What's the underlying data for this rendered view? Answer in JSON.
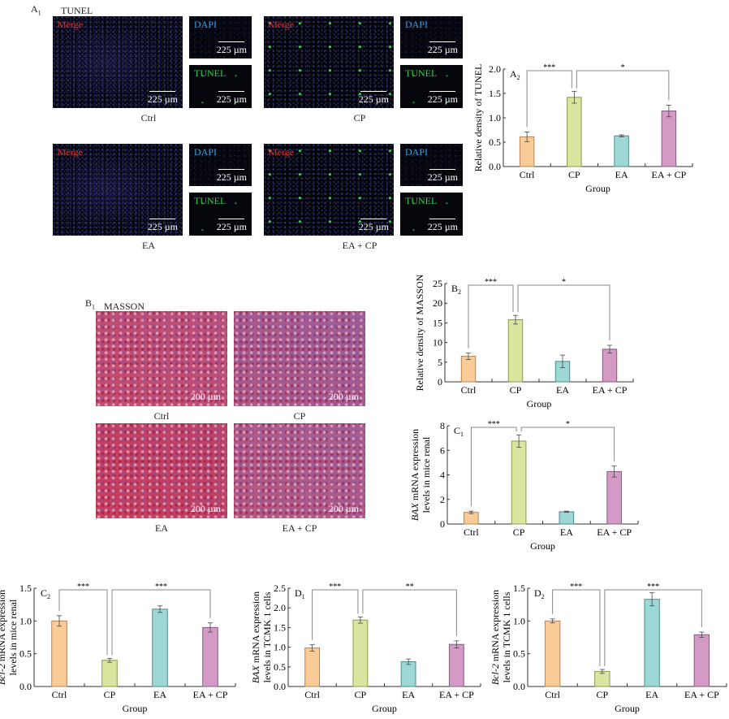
{
  "section_a": {
    "panel": "A",
    "sub": "1",
    "title": "TUNEL",
    "channels": {
      "merge": "Merge",
      "dapi": "DAPI",
      "tunel": "TUNEL"
    },
    "scale_bar": "225 µm",
    "groups": [
      "Ctrl",
      "CP",
      "EA",
      "EA + CP"
    ]
  },
  "section_b": {
    "panel": "B",
    "sub": "1",
    "title": "MASSON",
    "scale_bar": "200 µm",
    "groups": [
      "Ctrl",
      "CP",
      "EA",
      "EA + CP"
    ]
  },
  "colors": {
    "Ctrl": "#f9cc97",
    "CP": "#d9e6a0",
    "EA": "#9dd8d6",
    "EA + CP": "#d39ac6",
    "merge_label": "#e03030",
    "dapi_label": "#3aa0e0",
    "tunel_label": "#30d050"
  },
  "chart_data": [
    {
      "id": "A2",
      "type": "bar",
      "panel": "A",
      "sub": "2",
      "categories": [
        "Ctrl",
        "CP",
        "EA",
        "EA + CP"
      ],
      "values": [
        0.61,
        1.42,
        0.63,
        1.14
      ],
      "errors": [
        0.1,
        0.12,
        0.02,
        0.12
      ],
      "xlabel": "Group",
      "ylabel_gene": "",
      "ylabel_rest": "Relative density of TUNEL",
      "ylabel_line2": "",
      "ylim": [
        0,
        2
      ],
      "yticks": [
        0,
        0.5,
        1,
        1.5,
        2
      ],
      "ytick_labels": [
        "0.0",
        "0.5",
        "1.0",
        "1.5",
        "2.0"
      ],
      "significance": [
        {
          "from": "CP",
          "to": "Ctrl",
          "label": "***"
        },
        {
          "from": "CP",
          "to": "EA + CP",
          "label": "*"
        }
      ]
    },
    {
      "id": "B2",
      "type": "bar",
      "panel": "B",
      "sub": "2",
      "categories": [
        "Ctrl",
        "CP",
        "EA",
        "EA + CP"
      ],
      "values": [
        6.5,
        15.8,
        5.2,
        8.3
      ],
      "errors": [
        0.8,
        1.1,
        1.6,
        1.0
      ],
      "xlabel": "Group",
      "ylabel_gene": "",
      "ylabel_rest": "Relative density of MASSON",
      "ylabel_line2": "",
      "ylim": [
        0,
        25
      ],
      "yticks": [
        0,
        5,
        10,
        15,
        20,
        25
      ],
      "ytick_labels": [
        "0",
        "5",
        "10",
        "15",
        "20",
        "25"
      ],
      "significance": [
        {
          "from": "CP",
          "to": "Ctrl",
          "label": "***"
        },
        {
          "from": "CP",
          "to": "EA + CP",
          "label": "*"
        }
      ]
    },
    {
      "id": "C1",
      "type": "bar",
      "panel": "C",
      "sub": "1",
      "categories": [
        "Ctrl",
        "CP",
        "EA",
        "EA + CP"
      ],
      "values": [
        0.95,
        6.75,
        1.0,
        4.27
      ],
      "errors": [
        0.1,
        0.5,
        0.05,
        0.45
      ],
      "xlabel": "Group",
      "ylabel_gene": "BAX",
      "ylabel_rest": " mRNA expression",
      "ylabel_line2": "levels in mice renal",
      "ylim": [
        0,
        8
      ],
      "yticks": [
        0,
        2,
        4,
        6,
        8
      ],
      "ytick_labels": [
        "0",
        "2",
        "4",
        "6",
        "8"
      ],
      "significance": [
        {
          "from": "CP",
          "to": "Ctrl",
          "label": "***"
        },
        {
          "from": "CP",
          "to": "EA + CP",
          "label": "*"
        }
      ]
    },
    {
      "id": "C2",
      "type": "bar",
      "panel": "C",
      "sub": "2",
      "categories": [
        "Ctrl",
        "CP",
        "EA",
        "EA + CP"
      ],
      "values": [
        1.0,
        0.4,
        1.18,
        0.9
      ],
      "errors": [
        0.08,
        0.03,
        0.05,
        0.07
      ],
      "xlabel": "Group",
      "ylabel_gene": "Bcl-2",
      "ylabel_rest": " mRNA expression",
      "ylabel_line2": "levels in mice renal",
      "ylim": [
        0,
        1.5
      ],
      "yticks": [
        0,
        0.5,
        1,
        1.5
      ],
      "ytick_labels": [
        "0.0",
        "0.5",
        "1.0",
        "1.5"
      ],
      "significance": [
        {
          "from": "CP",
          "to": "Ctrl",
          "label": "***"
        },
        {
          "from": "CP",
          "to": "EA + CP",
          "label": "***"
        }
      ]
    },
    {
      "id": "D1",
      "type": "bar",
      "panel": "D",
      "sub": "1",
      "categories": [
        "Ctrl",
        "CP",
        "EA",
        "EA + CP"
      ],
      "values": [
        0.98,
        1.69,
        0.63,
        1.07
      ],
      "errors": [
        0.08,
        0.08,
        0.07,
        0.09
      ],
      "xlabel": "Group",
      "ylabel_gene": "BAX",
      "ylabel_rest": " mRNA expression",
      "ylabel_line2": "levels in TCMK 1 cells",
      "ylim": [
        0,
        2.5
      ],
      "yticks": [
        0,
        0.5,
        1,
        1.5,
        2,
        2.5
      ],
      "ytick_labels": [
        "0.0",
        "0.5",
        "1.0",
        "1.5",
        "2.0",
        "2.5"
      ],
      "significance": [
        {
          "from": "CP",
          "to": "Ctrl",
          "label": "***"
        },
        {
          "from": "CP",
          "to": "EA + CP",
          "label": "**"
        }
      ]
    },
    {
      "id": "D2",
      "type": "bar",
      "panel": "D",
      "sub": "2",
      "categories": [
        "Ctrl",
        "CP",
        "EA",
        "EA + CP"
      ],
      "values": [
        1.0,
        0.23,
        1.33,
        0.79
      ],
      "errors": [
        0.03,
        0.03,
        0.1,
        0.04
      ],
      "xlabel": "Group",
      "ylabel_gene": "Bcl-2",
      "ylabel_rest": " mRNA expression",
      "ylabel_line2": "levels in TCMK 1 cells",
      "ylim": [
        0,
        1.5
      ],
      "yticks": [
        0,
        0.5,
        1,
        1.5
      ],
      "ytick_labels": [
        "0.0",
        "0.5",
        "1.0",
        "1.5"
      ],
      "significance": [
        {
          "from": "CP",
          "to": "Ctrl",
          "label": "***"
        },
        {
          "from": "CP",
          "to": "EA + CP",
          "label": "***"
        }
      ]
    }
  ]
}
